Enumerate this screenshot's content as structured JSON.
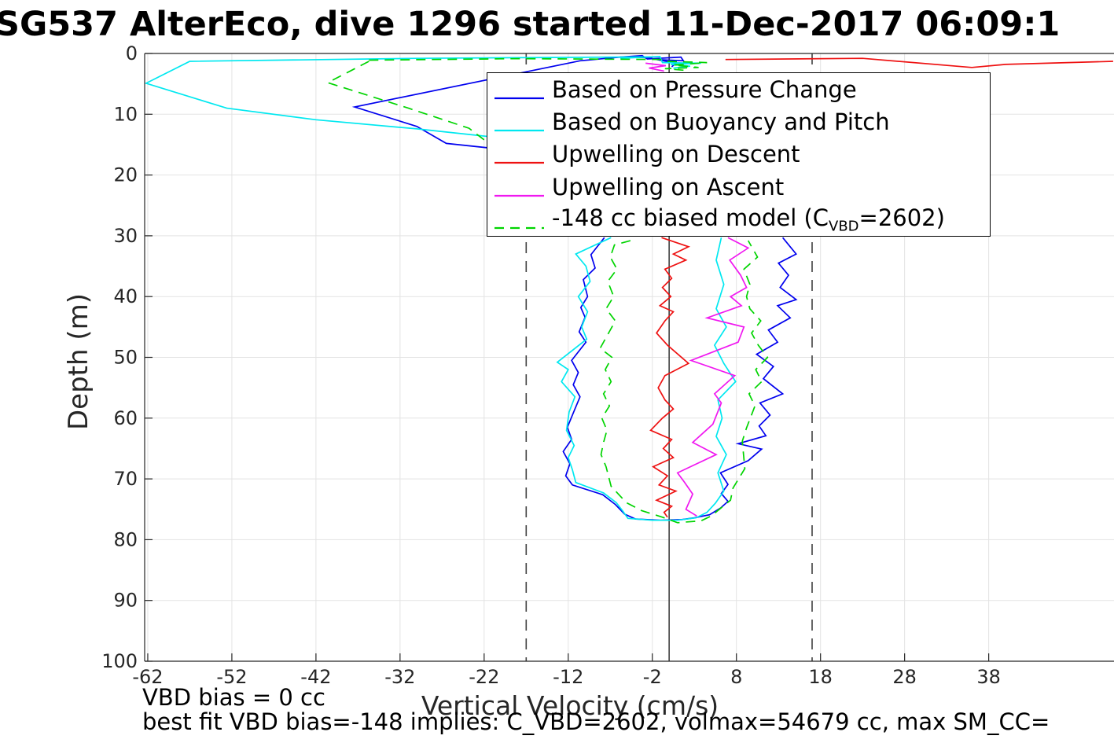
{
  "title": "SG537 AlterEco, dive 1296 started 11-Dec-2017 06:09:1",
  "ylabel": "Depth (m)",
  "xlabel": "Vertical Velocity (cm/s)",
  "annotations": {
    "vbd_bias": "VBD bias = 0 cc",
    "best_fit": "best fit VBD bias=-148 implies: C_VBD=2602, volmax=54679 cc, max SM_CC="
  },
  "legend": {
    "items": [
      {
        "label": "Based on Pressure Change",
        "color": "#0000ee",
        "dash": false
      },
      {
        "label": "Based on Buoyancy and Pitch",
        "color": "#00e8f0",
        "dash": false
      },
      {
        "label": "Upwelling on Descent",
        "color": "#ee1111",
        "dash": false
      },
      {
        "label": "Upwelling on Ascent",
        "color": "#f018f0",
        "dash": false
      },
      {
        "label_prefix": "-148 cc biased model (C",
        "label_sub": "VBD",
        "label_suffix": "=2602)",
        "color": "#00d400",
        "dash": true
      }
    ]
  },
  "chart_data": {
    "type": "line",
    "title": "SG537 AlterEco, dive 1296 started 11-Dec-2017 06:09:1",
    "xlabel": "Vertical Velocity (cm/s)",
    "ylabel": "Depth (m)",
    "xlim": [
      -62.37,
      52.9
    ],
    "ylim": [
      0,
      100
    ],
    "y_axis_reversed": true,
    "grid": true,
    "legend_position": "upper-center",
    "xticks": [
      -62,
      -52,
      -42,
      -32,
      -22,
      -12,
      -2,
      8,
      18,
      28,
      38
    ],
    "yticks": [
      0,
      10,
      20,
      30,
      40,
      50,
      60,
      70,
      80,
      90,
      100
    ],
    "ref_lines": [
      {
        "x": 0,
        "style": "solid",
        "color": "#404040"
      },
      {
        "x": -17,
        "style": "dashed",
        "color": "#404040"
      },
      {
        "x": 17,
        "style": "dashed",
        "color": "#404040"
      }
    ],
    "series": [
      {
        "name": "Based on Pressure Change",
        "color": "#0000ee",
        "dashed": false,
        "segments": [
          [
            [
              -2.0,
              0.7
            ],
            [
              -5.8,
              0.6
            ],
            [
              -10.6,
              1.2
            ],
            [
              -37.4,
              8.8
            ],
            [
              -30.0,
              12.0
            ],
            [
              -26.5,
              14.8
            ],
            [
              -21.0,
              15.6
            ],
            [
              -19.8,
              17.2
            ]
          ],
          [
            [
              -5.8,
              0.6
            ],
            [
              -3.2,
              0.35
            ],
            [
              -2.6,
              0.9
            ],
            [
              1.4,
              0.6
            ],
            [
              1.7,
              1.2
            ],
            [
              -1.5,
              1.0
            ],
            [
              0.8,
              1.6
            ],
            [
              0.3,
              2.2
            ]
          ],
          [
            [
              -7.7,
              30.3
            ],
            [
              -9.3,
              33.1
            ],
            [
              -8.8,
              35.3
            ],
            [
              -10.2,
              37.2
            ],
            [
              -9.7,
              40.0
            ],
            [
              -10.5,
              41.8
            ],
            [
              -10.0,
              43.4
            ],
            [
              -10.7,
              45.8
            ],
            [
              -9.9,
              47.5
            ],
            [
              -11.6,
              50.5
            ],
            [
              -10.8,
              52.5
            ],
            [
              -11.4,
              54.5
            ],
            [
              -10.6,
              56.5
            ],
            [
              -11.2,
              58.5
            ],
            [
              -12.1,
              61.5
            ],
            [
              -11.6,
              63.5
            ],
            [
              -12.6,
              65.5
            ],
            [
              -11.8,
              67.5
            ],
            [
              -12.3,
              69.5
            ],
            [
              -11.5,
              71.0
            ],
            [
              -7.9,
              72.6
            ],
            [
              -6.4,
              74.2
            ],
            [
              -5.3,
              75.8
            ],
            [
              -4.0,
              76.6
            ],
            [
              -1.0,
              76.8
            ],
            [
              1.5,
              76.7
            ],
            [
              3.0,
              76.4
            ],
            [
              4.8,
              75.9
            ],
            [
              6.1,
              74.8
            ],
            [
              7.0,
              73.7
            ],
            [
              6.2,
              72.4
            ],
            [
              7.0,
              70.9
            ],
            [
              6.1,
              69.0
            ],
            [
              9.4,
              67.0
            ],
            [
              11.0,
              65.1
            ],
            [
              8.2,
              64.2
            ],
            [
              11.5,
              62.9
            ],
            [
              10.7,
              61.3
            ],
            [
              12.0,
              59.5
            ],
            [
              10.8,
              57.5
            ],
            [
              13.5,
              56.0
            ],
            [
              11.2,
              53.5
            ],
            [
              12.4,
              51.5
            ],
            [
              10.4,
              49.5
            ],
            [
              12.9,
              47.5
            ],
            [
              11.8,
              45.5
            ],
            [
              14.4,
              43.5
            ],
            [
              12.9,
              41.5
            ],
            [
              15.1,
              40.5
            ],
            [
              13.2,
              38.5
            ],
            [
              14.2,
              36.5
            ],
            [
              13.0,
              34.5
            ],
            [
              15.1,
              33.0
            ],
            [
              13.5,
              30.3
            ]
          ]
        ]
      },
      {
        "name": "Based on Buoyancy and Pitch",
        "color": "#00e8f0",
        "dashed": false,
        "segments": [
          [
            [
              -2.0,
              0.55
            ],
            [
              -30.0,
              0.8
            ],
            [
              -57.0,
              1.3
            ],
            [
              -62.2,
              4.9
            ],
            [
              -52.6,
              9.0
            ],
            [
              -42.0,
              10.9
            ],
            [
              -30.0,
              12.4
            ],
            [
              -21.3,
              13.7
            ]
          ],
          [
            [
              -5.8,
              0.8
            ],
            [
              -1.1,
              0.5
            ],
            [
              -0.8,
              1.5
            ],
            [
              3.8,
              1.6
            ],
            [
              0.2,
              1.8
            ],
            [
              2.5,
              2.1
            ],
            [
              0.5,
              2.4
            ]
          ],
          [
            [
              -6.9,
              30.3
            ],
            [
              -11.1,
              33.0
            ],
            [
              -9.9,
              35.0
            ],
            [
              -9.4,
              37.5
            ],
            [
              -10.8,
              40.0
            ],
            [
              -9.7,
              42.5
            ],
            [
              -10.4,
              45.0
            ],
            [
              -9.8,
              47.0
            ],
            [
              -13.3,
              50.8
            ],
            [
              -12.0,
              52.0
            ],
            [
              -12.8,
              54.0
            ],
            [
              -11.2,
              56.5
            ],
            [
              -11.9,
              59.0
            ],
            [
              -12.2,
              62.0
            ],
            [
              -11.3,
              64.5
            ],
            [
              -12.0,
              66.5
            ],
            [
              -11.5,
              68.5
            ],
            [
              -11.1,
              70.6
            ],
            [
              -7.8,
              72.3
            ],
            [
              -6.3,
              73.9
            ],
            [
              -5.5,
              75.3
            ],
            [
              -4.9,
              76.5
            ],
            [
              -2.0,
              76.8
            ],
            [
              1.0,
              76.8
            ],
            [
              3.2,
              76.4
            ],
            [
              4.5,
              75.5
            ],
            [
              5.5,
              74.0
            ],
            [
              6.5,
              72.0
            ],
            [
              5.8,
              69.0
            ],
            [
              6.8,
              66.0
            ],
            [
              5.6,
              63.0
            ],
            [
              6.3,
              60.0
            ],
            [
              5.8,
              57.0
            ],
            [
              7.9,
              54.0
            ],
            [
              6.5,
              51.0
            ],
            [
              5.4,
              48.0
            ],
            [
              6.8,
              45.0
            ],
            [
              5.6,
              42.0
            ],
            [
              6.5,
              38.0
            ],
            [
              5.6,
              34.0
            ],
            [
              6.2,
              30.3
            ]
          ]
        ]
      },
      {
        "name": "Upwelling on Descent",
        "color": "#ee1111",
        "dashed": false,
        "segments": [
          [
            [
              6.7,
              1.0
            ],
            [
              23.0,
              0.8
            ],
            [
              36.0,
              2.3
            ],
            [
              40.0,
              1.8
            ],
            [
              52.8,
              1.3
            ]
          ],
          [
            [
              -0.9,
              30.3
            ],
            [
              2.3,
              31.8
            ],
            [
              0.5,
              33.0
            ],
            [
              2.0,
              34.0
            ],
            [
              -0.5,
              35.5
            ],
            [
              0.3,
              37.0
            ],
            [
              -0.8,
              38.5
            ],
            [
              0.2,
              40.0
            ],
            [
              -1.1,
              41.5
            ],
            [
              0.5,
              42.5
            ],
            [
              -0.5,
              44.0
            ],
            [
              -1.5,
              46.0
            ],
            [
              -0.2,
              48.0
            ],
            [
              2.3,
              51.0
            ],
            [
              -0.5,
              53.0
            ],
            [
              -1.3,
              55.0
            ],
            [
              -0.5,
              57.0
            ],
            [
              0.5,
              58.5
            ],
            [
              -0.8,
              60.0
            ],
            [
              -2.2,
              62.0
            ],
            [
              0.3,
              63.5
            ],
            [
              -0.7,
              65.0
            ],
            [
              0.5,
              66.5
            ],
            [
              -1.9,
              68.0
            ],
            [
              -0.2,
              69.5
            ],
            [
              -1.2,
              71.0
            ],
            [
              0.8,
              72.0
            ],
            [
              -1.5,
              73.5
            ],
            [
              0.3,
              74.5
            ],
            [
              -0.6,
              75.5
            ],
            [
              -0.2,
              76.3
            ]
          ]
        ]
      },
      {
        "name": "Upwelling on Ascent",
        "color": "#f018f0",
        "dashed": false,
        "segments": [
          [
            [
              -2.8,
              1.6
            ],
            [
              -0.4,
              2.0
            ],
            [
              -2.4,
              2.4
            ],
            [
              -0.6,
              2.9
            ]
          ],
          [
            [
              7.0,
              30.3
            ],
            [
              9.4,
              32.0
            ],
            [
              7.2,
              34.0
            ],
            [
              8.5,
              36.5
            ],
            [
              9.2,
              38.5
            ],
            [
              7.3,
              40.0
            ],
            [
              8.6,
              41.5
            ],
            [
              4.5,
              43.5
            ],
            [
              8.9,
              45.0
            ],
            [
              8.2,
              47.5
            ],
            [
              2.6,
              50.5
            ],
            [
              7.8,
              53.0
            ],
            [
              5.4,
              56.0
            ],
            [
              6.2,
              57.5
            ],
            [
              5.2,
              61.0
            ],
            [
              2.8,
              64.0
            ],
            [
              5.6,
              66.0
            ],
            [
              1.0,
              69.0
            ],
            [
              1.8,
              70.5
            ],
            [
              2.8,
              72.5
            ],
            [
              2.0,
              75.0
            ],
            [
              3.3,
              76.1
            ]
          ]
        ]
      },
      {
        "name": "-148 cc biased model (C_VBD=2602)",
        "color": "#00d400",
        "dashed": true,
        "segments": [
          [
            [
              -35.7,
              1.3
            ],
            [
              -40.6,
              4.8
            ],
            [
              -31.0,
              9.0
            ],
            [
              -23.8,
              12.3
            ],
            [
              -20.7,
              15.6
            ]
          ],
          [
            [
              -35.7,
              1.1
            ],
            [
              -18.0,
              0.85
            ],
            [
              -0.2,
              1.0
            ]
          ],
          [
            [
              -0.2,
              1.3
            ],
            [
              4.5,
              1.5
            ],
            [
              0.5,
              1.9
            ],
            [
              3.5,
              2.3
            ],
            [
              -0.5,
              2.5
            ],
            [
              2.0,
              2.8
            ]
          ],
          [
            [
              -4.6,
              30.8
            ],
            [
              -6.5,
              31.5
            ],
            [
              -7.0,
              33.5
            ],
            [
              -6.2,
              35.5
            ],
            [
              -7.3,
              37.5
            ],
            [
              -6.6,
              40.0
            ],
            [
              -7.5,
              42.0
            ],
            [
              -6.4,
              44.0
            ],
            [
              -7.2,
              46.0
            ],
            [
              -8.2,
              48.5
            ],
            [
              -6.8,
              50.0
            ],
            [
              -7.6,
              52.0
            ],
            [
              -6.9,
              54.0
            ],
            [
              -7.8,
              56.0
            ],
            [
              -7.1,
              58.0
            ],
            [
              -8.0,
              60.0
            ],
            [
              -7.4,
              62.0
            ],
            [
              -7.8,
              64.0
            ],
            [
              -8.1,
              66.0
            ],
            [
              -7.5,
              68.0
            ],
            [
              -6.9,
              71.2
            ],
            [
              -5.1,
              73.9
            ],
            [
              -3.3,
              75.2
            ],
            [
              -0.8,
              76.3
            ],
            [
              1.0,
              77.2
            ],
            [
              3.8,
              76.9
            ],
            [
              5.0,
              76.1
            ],
            [
              7.3,
              73.5
            ],
            [
              7.6,
              71.5
            ],
            [
              9.0,
              68.3
            ],
            [
              8.7,
              63.8
            ],
            [
              9.2,
              61.6
            ],
            [
              10.2,
              58.0
            ],
            [
              9.5,
              56.0
            ],
            [
              11.0,
              54.0
            ],
            [
              10.3,
              52.0
            ],
            [
              11.7,
              50.0
            ],
            [
              10.6,
              48.0
            ],
            [
              9.8,
              46.0
            ],
            [
              10.9,
              44.0
            ],
            [
              9.6,
              42.0
            ],
            [
              9.2,
              40.0
            ],
            [
              9.6,
              38.0
            ],
            [
              8.9,
              35.5
            ],
            [
              10.5,
              33.5
            ],
            [
              9.4,
              30.8
            ]
          ]
        ]
      }
    ]
  }
}
